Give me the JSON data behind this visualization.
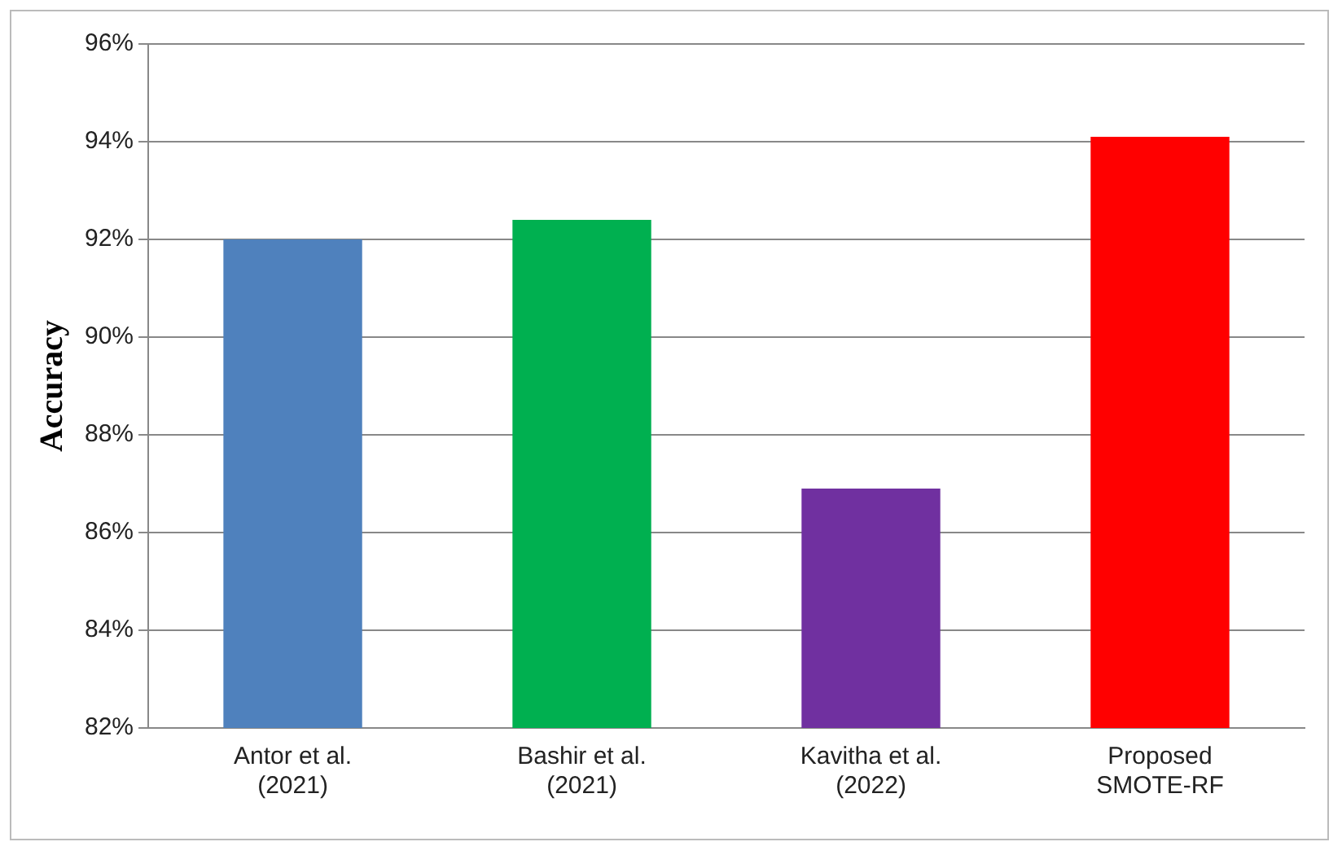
{
  "chart_data": {
    "type": "bar",
    "ylabel": "Accuracy",
    "categories": [
      "Antor et al.\n(2021)",
      "Bashir et al.\n(2021)",
      "Kavitha et al.\n(2022)",
      "Proposed\nSMOTE-RF"
    ],
    "values": [
      92.0,
      92.4,
      86.9,
      94.1
    ],
    "colors": [
      "#4f81bd",
      "#00b050",
      "#7030a0",
      "#ff0000"
    ],
    "ylim": [
      82,
      96
    ],
    "yticks": [
      {
        "value": 82,
        "label": "82%"
      },
      {
        "value": 84,
        "label": "84%"
      },
      {
        "value": 86,
        "label": "86%"
      },
      {
        "value": 88,
        "label": "88%"
      },
      {
        "value": 90,
        "label": "90%"
      },
      {
        "value": 92,
        "label": "92%"
      },
      {
        "value": 94,
        "label": "94%"
      },
      {
        "value": 96,
        "label": "96%"
      }
    ],
    "grid": "y",
    "legend": false
  }
}
